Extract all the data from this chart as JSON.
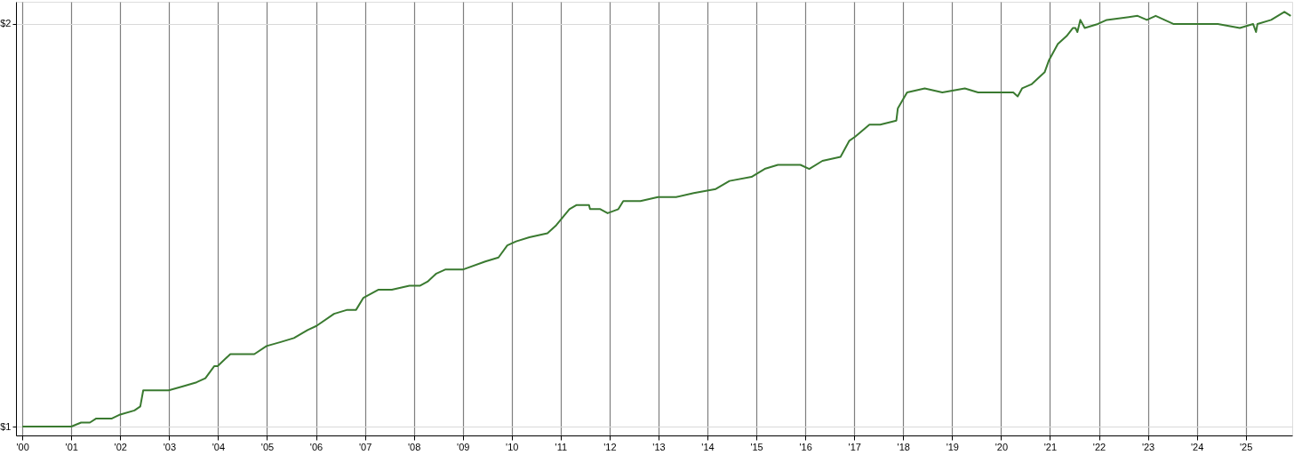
{
  "chart_data": {
    "type": "line",
    "x": [
      2000.0,
      2001.0,
      2001.2,
      2001.38,
      2001.51,
      2001.56,
      2001.83,
      2002.0,
      2002.29,
      2002.41,
      2002.47,
      2002.65,
      2002.99,
      2003.28,
      2003.56,
      2003.74,
      2003.92,
      2003.99,
      2004.25,
      2004.32,
      2004.74,
      2004.99,
      2005.28,
      2005.55,
      2005.83,
      2006.01,
      2006.37,
      2006.64,
      2006.82,
      2006.97,
      2007.28,
      2007.55,
      2007.91,
      2008.13,
      2008.28,
      2008.46,
      2008.64,
      2009.0,
      2009.46,
      2009.73,
      2009.91,
      2010.09,
      2010.36,
      2010.73,
      2010.91,
      2011.18,
      2011.32,
      2011.58,
      2011.6,
      2011.81,
      2011.96,
      2012.18,
      2012.28,
      2012.63,
      2012.99,
      2013.36,
      2013.72,
      2014.17,
      2014.45,
      2014.9,
      2015.17,
      2015.44,
      2015.9,
      2016.08,
      2016.35,
      2016.72,
      2016.9,
      2017.02,
      2017.31,
      2017.53,
      2017.86,
      2017.89,
      2018.08,
      2018.44,
      2018.8,
      2019.26,
      2019.53,
      2019.98,
      2020.25,
      2020.34,
      2020.43,
      2020.62,
      2020.89,
      2020.98,
      2021.16,
      2021.34,
      2021.47,
      2021.52,
      2021.56,
      2021.62,
      2021.71,
      2021.98,
      2022.16,
      2022.79,
      2022.98,
      2023.16,
      2023.52,
      2023.97,
      2024.43,
      2024.88,
      2025.15,
      2025.21,
      2025.24,
      2025.52,
      2025.79,
      2025.92
    ],
    "series": [
      {
        "color": "#3a7a30",
        "values": [
          1.0,
          1.0,
          1.01,
          1.01,
          1.02,
          1.02,
          1.02,
          1.03,
          1.04,
          1.05,
          1.09,
          1.09,
          1.09,
          1.1,
          1.11,
          1.12,
          1.15,
          1.15,
          1.18,
          1.18,
          1.18,
          1.2,
          1.21,
          1.22,
          1.24,
          1.25,
          1.28,
          1.29,
          1.29,
          1.32,
          1.34,
          1.34,
          1.35,
          1.35,
          1.36,
          1.38,
          1.39,
          1.39,
          1.41,
          1.42,
          1.45,
          1.46,
          1.47,
          1.48,
          1.5,
          1.54,
          1.55,
          1.55,
          1.54,
          1.54,
          1.53,
          1.54,
          1.56,
          1.56,
          1.57,
          1.57,
          1.58,
          1.59,
          1.61,
          1.62,
          1.64,
          1.65,
          1.65,
          1.64,
          1.66,
          1.67,
          1.71,
          1.72,
          1.75,
          1.75,
          1.76,
          1.79,
          1.83,
          1.84,
          1.83,
          1.84,
          1.83,
          1.83,
          1.83,
          1.82,
          1.84,
          1.85,
          1.88,
          1.91,
          1.95,
          1.97,
          1.99,
          1.99,
          1.98,
          2.01,
          1.99,
          2.0,
          2.01,
          2.02,
          2.01,
          2.02,
          2.0,
          2.0,
          2.0,
          1.99,
          2.0,
          1.98,
          2.0,
          2.01,
          2.03,
          2.02
        ]
      }
    ],
    "xlim": [
      1999.87,
      2025.95
    ],
    "xticks": [
      {
        "value": 2000,
        "label": "'00"
      },
      {
        "value": 2001,
        "label": "'01"
      },
      {
        "value": 2002,
        "label": "'02"
      },
      {
        "value": 2003,
        "label": "'03"
      },
      {
        "value": 2004,
        "label": "'04"
      },
      {
        "value": 2005,
        "label": "'05"
      },
      {
        "value": 2006,
        "label": "'06"
      },
      {
        "value": 2007,
        "label": "'07"
      },
      {
        "value": 2008,
        "label": "'08"
      },
      {
        "value": 2009,
        "label": "'09"
      },
      {
        "value": 2010,
        "label": "'10"
      },
      {
        "value": 2011,
        "label": "'11"
      },
      {
        "value": 2012,
        "label": "'12"
      },
      {
        "value": 2013,
        "label": "'13"
      },
      {
        "value": 2014,
        "label": "'14"
      },
      {
        "value": 2015,
        "label": "'15"
      },
      {
        "value": 2016,
        "label": "'16"
      },
      {
        "value": 2017,
        "label": "'17"
      },
      {
        "value": 2018,
        "label": "'18"
      },
      {
        "value": 2019,
        "label": "'19"
      },
      {
        "value": 2020,
        "label": "'20"
      },
      {
        "value": 2021,
        "label": "'21"
      },
      {
        "value": 2022,
        "label": "'22"
      },
      {
        "value": 2023,
        "label": "'23"
      },
      {
        "value": 2024,
        "label": "'24"
      },
      {
        "value": 2025,
        "label": "'25"
      }
    ],
    "ylim": [
      0.978,
      2.055
    ],
    "yticks": [
      {
        "value": 1,
        "label": "$1"
      },
      {
        "value": 2,
        "label": "$2"
      }
    ],
    "grid": true,
    "line_style": "solid",
    "marker": "none"
  }
}
